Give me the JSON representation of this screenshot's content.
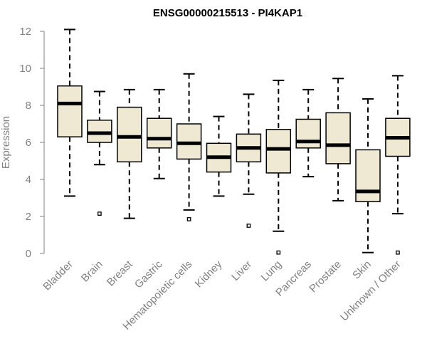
{
  "chart_data": {
    "type": "boxplot",
    "title": "ENSG00000215513 - PI4KAP1",
    "xlabel": "",
    "ylabel": "Expression",
    "ylim": [
      0,
      12
    ],
    "yticks": [
      0,
      2,
      4,
      6,
      8,
      10,
      12
    ],
    "box_fill": "#efe8d2",
    "categories": [
      "Bladder",
      "Brain",
      "Breast",
      "Gastric",
      "Hematopoietic cells",
      "Kidney",
      "Liver",
      "Lung",
      "Pancreas",
      "Prostate",
      "Skin",
      "Unknown / Other"
    ],
    "boxes": [
      {
        "min": 3.1,
        "q1": 6.3,
        "median": 8.1,
        "q3": 9.05,
        "max": 12.1,
        "outliers": []
      },
      {
        "min": 4.8,
        "q1": 6.0,
        "median": 6.5,
        "q3": 7.2,
        "max": 8.75,
        "outliers": [
          2.15
        ]
      },
      {
        "min": 1.9,
        "q1": 4.95,
        "median": 6.3,
        "q3": 7.9,
        "max": 8.85,
        "outliers": []
      },
      {
        "min": 4.05,
        "q1": 5.7,
        "median": 6.2,
        "q3": 7.3,
        "max": 8.85,
        "outliers": []
      },
      {
        "min": 2.35,
        "q1": 5.1,
        "median": 5.95,
        "q3": 7.0,
        "max": 9.7,
        "outliers": [
          1.85
        ]
      },
      {
        "min": 3.1,
        "q1": 4.4,
        "median": 5.2,
        "q3": 5.95,
        "max": 7.4,
        "outliers": []
      },
      {
        "min": 3.2,
        "q1": 4.95,
        "median": 5.7,
        "q3": 6.45,
        "max": 8.6,
        "outliers": [
          1.5
        ]
      },
      {
        "min": 1.2,
        "q1": 4.35,
        "median": 5.65,
        "q3": 6.7,
        "max": 9.35,
        "outliers": [
          0.05
        ]
      },
      {
        "min": 4.15,
        "q1": 5.7,
        "median": 6.05,
        "q3": 7.25,
        "max": 8.85,
        "outliers": []
      },
      {
        "min": 2.85,
        "q1": 4.85,
        "median": 5.85,
        "q3": 7.6,
        "max": 9.45,
        "outliers": []
      },
      {
        "min": 0.05,
        "q1": 2.8,
        "median": 3.35,
        "q3": 5.6,
        "max": 8.35,
        "outliers": []
      },
      {
        "min": 2.15,
        "q1": 5.25,
        "median": 6.25,
        "q3": 7.3,
        "max": 9.6,
        "outliers": [
          0.05
        ]
      }
    ]
  }
}
